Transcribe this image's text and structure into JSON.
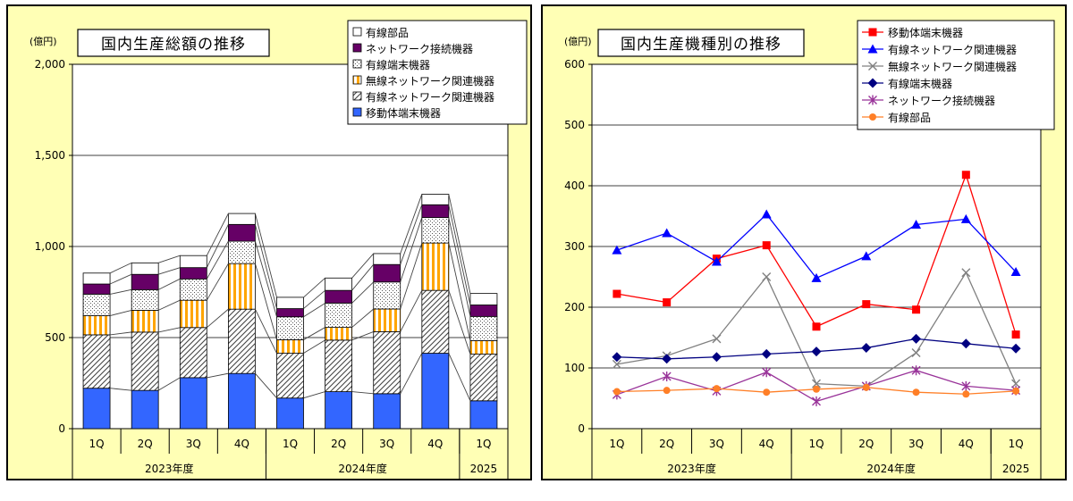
{
  "chart_data": [
    {
      "type": "stacked-bar",
      "title": "国内生産総額の推移",
      "ylabel": "(億円)",
      "ylim": [
        0,
        2000
      ],
      "yticks": [
        "0",
        "500",
        "1,000",
        "1,500",
        "2,000"
      ],
      "categories": [
        "1Q",
        "2Q",
        "3Q",
        "4Q",
        "1Q",
        "2Q",
        "3Q",
        "4Q",
        "1Q"
      ],
      "groups": [
        {
          "label": "2023年度",
          "span": 4
        },
        {
          "label": "2024年度",
          "span": 4
        },
        {
          "label": "2025",
          "span": 1
        }
      ],
      "series": [
        {
          "name": "移動体端末機器",
          "values": [
            222,
            210,
            280,
            303,
            168,
            203,
            192,
            414,
            153
          ],
          "color": "#3366ff",
          "pattern": "solid"
        },
        {
          "name": "有線ネットワーク関連機器",
          "values": [
            293,
            320,
            275,
            353,
            246,
            283,
            340,
            345,
            256
          ],
          "color": "#ffffff",
          "pattern": "diagonal"
        },
        {
          "name": "無線ネットワーク関連機器",
          "values": [
            105,
            120,
            150,
            250,
            74,
            70,
            125,
            260,
            74
          ],
          "color": "#ffa500",
          "pattern": "vstripes"
        },
        {
          "name": "有線端末機器",
          "values": [
            118,
            113,
            117,
            123,
            126,
            133,
            148,
            140,
            133
          ],
          "color": "#ffffff",
          "pattern": "dots"
        },
        {
          "name": "ネットワーク接続機器",
          "values": [
            56,
            84,
            62,
            92,
            45,
            70,
            96,
            70,
            63
          ],
          "color": "#660066",
          "pattern": "solid"
        },
        {
          "name": "有線部品",
          "values": [
            60,
            63,
            66,
            60,
            62,
            68,
            60,
            58,
            63
          ],
          "color": "#ffffff",
          "pattern": "solid"
        }
      ],
      "legend_placement": "top-right"
    },
    {
      "type": "line",
      "title": "国内生産機種別の推移",
      "ylabel": "(億円)",
      "ylim": [
        0,
        600
      ],
      "yticks": [
        "0",
        "100",
        "200",
        "300",
        "400",
        "500",
        "600"
      ],
      "categories": [
        "1Q",
        "2Q",
        "3Q",
        "4Q",
        "1Q",
        "2Q",
        "3Q",
        "4Q",
        "1Q"
      ],
      "groups": [
        {
          "label": "2023年度",
          "span": 4
        },
        {
          "label": "2024年度",
          "span": 4
        },
        {
          "label": "2025",
          "span": 1
        }
      ],
      "series": [
        {
          "name": "移動体端末機器",
          "values": [
            222,
            208,
            280,
            302,
            168,
            205,
            196,
            418,
            155
          ],
          "color": "#ff0000",
          "marker": "square"
        },
        {
          "name": "有線ネットワーク関連機器",
          "values": [
            294,
            322,
            275,
            353,
            248,
            284,
            336,
            345,
            258
          ],
          "color": "#0000ff",
          "marker": "triangle"
        },
        {
          "name": "無線ネットワーク関連機器",
          "values": [
            106,
            120,
            148,
            250,
            74,
            70,
            125,
            257,
            74
          ],
          "color": "#808080",
          "marker": "x"
        },
        {
          "name": "有線端末機器",
          "values": [
            118,
            115,
            118,
            123,
            127,
            133,
            148,
            140,
            132
          ],
          "color": "#000080",
          "marker": "diamond"
        },
        {
          "name": "ネットワーク接続機器",
          "values": [
            56,
            86,
            62,
            93,
            45,
            70,
            96,
            70,
            63
          ],
          "color": "#993399",
          "marker": "star"
        },
        {
          "name": "有線部品",
          "values": [
            61,
            63,
            66,
            60,
            65,
            68,
            60,
            57,
            62
          ],
          "color": "#ff7f27",
          "marker": "circle"
        }
      ],
      "legend_placement": "top-right"
    }
  ]
}
